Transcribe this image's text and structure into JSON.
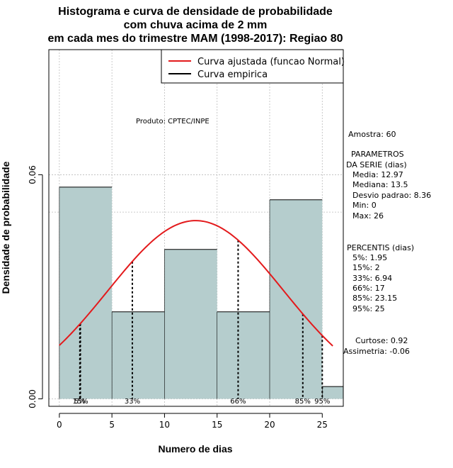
{
  "chart_data": {
    "type": "bar",
    "title_lines": [
      "Histograma e curva de densidade de probabilidade",
      "com chuva acima de 2 mm",
      "em cada mes do trimestre MAM (1998-2017): Regiao 80"
    ],
    "xlabel": "Numero de dias",
    "ylabel": "Densidade de probabilidade",
    "xlim": [
      -1,
      27
    ],
    "ylim": [
      -0.002,
      0.0935
    ],
    "x_ticks": [
      0,
      5,
      10,
      15,
      20,
      25
    ],
    "y_ticks": [
      0.0,
      0.06
    ],
    "y_tick_labels": [
      "0.00",
      "0.06"
    ],
    "grid": true,
    "reference_line_y": 0.05,
    "bins": [
      {
        "from": 0,
        "to": 5,
        "density": 0.0567
      },
      {
        "from": 5,
        "to": 10,
        "density": 0.0233
      },
      {
        "from": 10,
        "to": 15,
        "density": 0.04
      },
      {
        "from": 15,
        "to": 20,
        "density": 0.0233
      },
      {
        "from": 20,
        "to": 25,
        "density": 0.0533
      },
      {
        "from": 25,
        "to": 30,
        "density": 0.0033
      }
    ],
    "series": [
      {
        "name": "Curva ajustada (funcao Normal)",
        "color": "#e31a1c",
        "mean": 12.97,
        "sd": 8.36,
        "x_range": [
          0,
          26
        ]
      },
      {
        "name": "Curva empirica",
        "color": "#000000"
      }
    ],
    "percentile_markers": [
      {
        "label": "5%",
        "x": 1.95
      },
      {
        "label": "15%",
        "x": 2
      },
      {
        "label": "33%",
        "x": 6.94
      },
      {
        "label": "66%",
        "x": 17
      },
      {
        "label": "85%",
        "x": 23.15
      },
      {
        "label": "95%",
        "x": 25
      }
    ],
    "legend_position": "top-right",
    "product_label": "Produto: CPTEC/INPE",
    "stats": {
      "sample": "Amostra: 60",
      "params_header_1": "PARAMETROS",
      "params_header_2": "DA SERIE (dias)",
      "params": [
        "Media: 12.97",
        "Mediana: 13.5",
        "Desvio padrao: 8.36",
        "Min: 0",
        "Max: 26"
      ],
      "percentis_header": "PERCENTIS (dias)",
      "percentis": [
        "5%: 1.95",
        "15%: 2",
        "33%: 6.94",
        "66%: 17",
        "85%: 23.15",
        "95%: 25"
      ],
      "curtose": "Curtose: 0.92",
      "assimetria": "Assimetria: -0.06"
    },
    "colors": {
      "bar_fill": "#b5cdcd",
      "bar_stroke": "#000000",
      "grid": "#bbbbbb",
      "normal_curve": "#e31a1c"
    }
  }
}
